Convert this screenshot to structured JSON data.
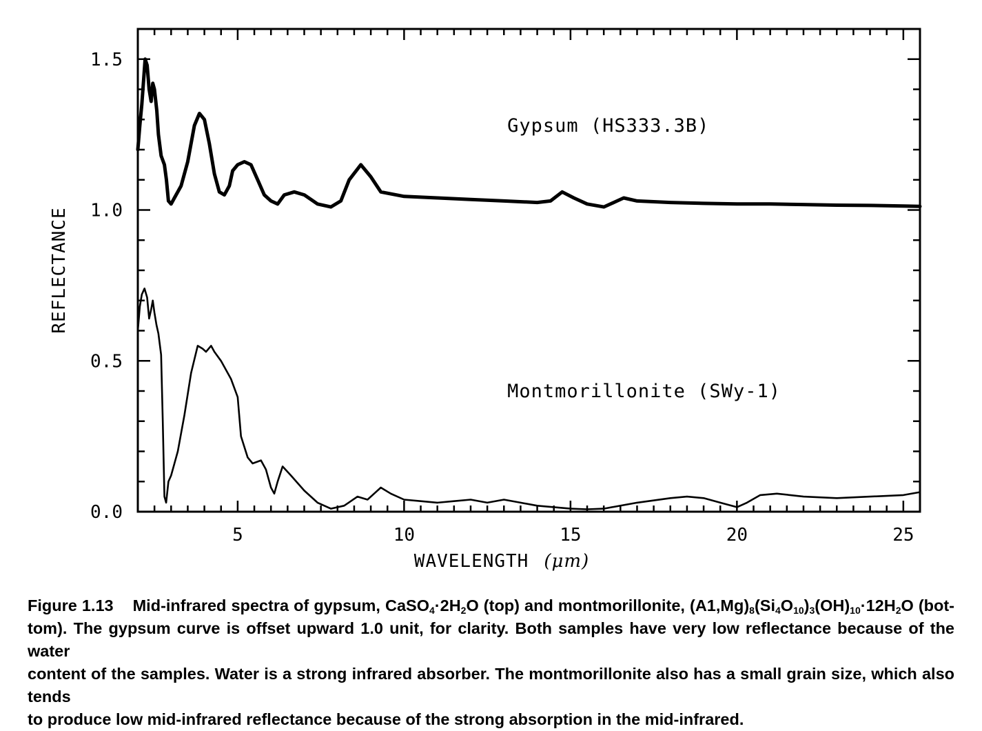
{
  "chart_data": {
    "type": "line",
    "xlabel": "WAVELENGTH",
    "xlabel_unit": "(μm)",
    "ylabel": "REFLECTANCE",
    "xlim": [
      2.0,
      25.5
    ],
    "ylim": [
      0.0,
      1.6
    ],
    "x_ticks": [
      {
        "value": 5,
        "label": "5"
      },
      {
        "value": 10,
        "label": "10"
      },
      {
        "value": 15,
        "label": "15"
      },
      {
        "value": 20,
        "label": "20"
      },
      {
        "value": 25,
        "label": "25"
      }
    ],
    "y_ticks": [
      {
        "value": 0.0,
        "label": "0.0"
      },
      {
        "value": 0.5,
        "label": "0.5"
      },
      {
        "value": 1.0,
        "label": "1.0"
      },
      {
        "value": 1.5,
        "label": "1.5"
      }
    ],
    "grid": false,
    "series": [
      {
        "name": "Gypsum (HS333.3B)",
        "label_anchor": [
          13.1,
          1.26
        ],
        "stroke_weight": "heavy",
        "points": [
          [
            2.0,
            1.2
          ],
          [
            2.06,
            1.28
          ],
          [
            2.12,
            1.35
          ],
          [
            2.18,
            1.44
          ],
          [
            2.22,
            1.5
          ],
          [
            2.28,
            1.48
          ],
          [
            2.34,
            1.4
          ],
          [
            2.4,
            1.36
          ],
          [
            2.45,
            1.42
          ],
          [
            2.5,
            1.4
          ],
          [
            2.57,
            1.33
          ],
          [
            2.62,
            1.25
          ],
          [
            2.7,
            1.18
          ],
          [
            2.8,
            1.15
          ],
          [
            2.86,
            1.1
          ],
          [
            2.92,
            1.03
          ],
          [
            3.0,
            1.02
          ],
          [
            3.1,
            1.04
          ],
          [
            3.3,
            1.08
          ],
          [
            3.5,
            1.16
          ],
          [
            3.7,
            1.28
          ],
          [
            3.85,
            1.32
          ],
          [
            4.0,
            1.3
          ],
          [
            4.15,
            1.22
          ],
          [
            4.3,
            1.12
          ],
          [
            4.45,
            1.06
          ],
          [
            4.6,
            1.05
          ],
          [
            4.75,
            1.08
          ],
          [
            4.85,
            1.13
          ],
          [
            5.0,
            1.15
          ],
          [
            5.2,
            1.16
          ],
          [
            5.4,
            1.15
          ],
          [
            5.6,
            1.1
          ],
          [
            5.8,
            1.05
          ],
          [
            6.0,
            1.03
          ],
          [
            6.2,
            1.02
          ],
          [
            6.4,
            1.05
          ],
          [
            6.7,
            1.06
          ],
          [
            7.0,
            1.05
          ],
          [
            7.4,
            1.02
          ],
          [
            7.8,
            1.01
          ],
          [
            8.1,
            1.03
          ],
          [
            8.35,
            1.1
          ],
          [
            8.7,
            1.15
          ],
          [
            9.0,
            1.11
          ],
          [
            9.3,
            1.06
          ],
          [
            10.0,
            1.045
          ],
          [
            11.0,
            1.04
          ],
          [
            12.0,
            1.035
          ],
          [
            13.0,
            1.03
          ],
          [
            14.0,
            1.025
          ],
          [
            14.4,
            1.03
          ],
          [
            14.75,
            1.06
          ],
          [
            15.1,
            1.04
          ],
          [
            15.5,
            1.02
          ],
          [
            16.0,
            1.01
          ],
          [
            16.4,
            1.03
          ],
          [
            16.6,
            1.04
          ],
          [
            17.0,
            1.03
          ],
          [
            18.0,
            1.025
          ],
          [
            19.0,
            1.022
          ],
          [
            20.0,
            1.02
          ],
          [
            21.0,
            1.02
          ],
          [
            22.0,
            1.018
          ],
          [
            23.0,
            1.016
          ],
          [
            24.0,
            1.015
          ],
          [
            25.0,
            1.013
          ],
          [
            25.5,
            1.012
          ]
        ]
      },
      {
        "name": "Montmorillonite (SWy-1)",
        "label_anchor": [
          13.1,
          0.38
        ],
        "stroke_weight": "light",
        "points": [
          [
            2.0,
            0.6
          ],
          [
            2.06,
            0.68
          ],
          [
            2.12,
            0.72
          ],
          [
            2.2,
            0.74
          ],
          [
            2.28,
            0.71
          ],
          [
            2.34,
            0.64
          ],
          [
            2.4,
            0.67
          ],
          [
            2.45,
            0.7
          ],
          [
            2.5,
            0.66
          ],
          [
            2.56,
            0.62
          ],
          [
            2.62,
            0.59
          ],
          [
            2.7,
            0.52
          ],
          [
            2.75,
            0.3
          ],
          [
            2.8,
            0.05
          ],
          [
            2.85,
            0.03
          ],
          [
            2.92,
            0.1
          ],
          [
            3.0,
            0.12
          ],
          [
            3.2,
            0.2
          ],
          [
            3.4,
            0.32
          ],
          [
            3.6,
            0.46
          ],
          [
            3.8,
            0.55
          ],
          [
            3.95,
            0.54
          ],
          [
            4.05,
            0.53
          ],
          [
            4.2,
            0.55
          ],
          [
            4.3,
            0.53
          ],
          [
            4.5,
            0.5
          ],
          [
            4.8,
            0.44
          ],
          [
            5.0,
            0.38
          ],
          [
            5.1,
            0.25
          ],
          [
            5.3,
            0.18
          ],
          [
            5.45,
            0.16
          ],
          [
            5.7,
            0.17
          ],
          [
            5.85,
            0.14
          ],
          [
            6.0,
            0.08
          ],
          [
            6.1,
            0.06
          ],
          [
            6.2,
            0.1
          ],
          [
            6.35,
            0.15
          ],
          [
            6.6,
            0.12
          ],
          [
            7.0,
            0.07
          ],
          [
            7.4,
            0.03
          ],
          [
            7.8,
            0.01
          ],
          [
            8.2,
            0.02
          ],
          [
            8.6,
            0.05
          ],
          [
            8.9,
            0.04
          ],
          [
            9.1,
            0.06
          ],
          [
            9.3,
            0.08
          ],
          [
            9.6,
            0.06
          ],
          [
            10.0,
            0.04
          ],
          [
            10.5,
            0.035
          ],
          [
            11.0,
            0.03
          ],
          [
            11.5,
            0.035
          ],
          [
            12.0,
            0.04
          ],
          [
            12.5,
            0.03
          ],
          [
            13.0,
            0.04
          ],
          [
            13.5,
            0.03
          ],
          [
            14.0,
            0.02
          ],
          [
            14.5,
            0.015
          ],
          [
            15.0,
            0.01
          ],
          [
            15.5,
            0.008
          ],
          [
            16.0,
            0.01
          ],
          [
            17.0,
            0.03
          ],
          [
            18.0,
            0.045
          ],
          [
            18.5,
            0.05
          ],
          [
            19.0,
            0.045
          ],
          [
            19.5,
            0.03
          ],
          [
            20.0,
            0.015
          ],
          [
            20.3,
            0.03
          ],
          [
            20.7,
            0.055
          ],
          [
            21.2,
            0.06
          ],
          [
            21.6,
            0.055
          ],
          [
            22.0,
            0.05
          ],
          [
            23.0,
            0.045
          ],
          [
            24.0,
            0.05
          ],
          [
            25.0,
            0.055
          ],
          [
            25.5,
            0.065
          ]
        ]
      }
    ]
  },
  "caption": {
    "figure_number": "Figure 1.13",
    "lines": [
      {
        "spans": [
          {
            "t": "Mid-infrared spectra of gypsum, CaSO"
          },
          {
            "sub": "4"
          },
          {
            "t": "·2H"
          },
          {
            "sub": "2"
          },
          {
            "t": "O (top) and montmorillonite, (A1,Mg)"
          },
          {
            "sub": "8"
          },
          {
            "t": "(Si"
          },
          {
            "sub": "4"
          },
          {
            "t": "O"
          },
          {
            "sub": "10"
          },
          {
            "t": ")"
          },
          {
            "sub": "3"
          },
          {
            "t": "(OH)"
          },
          {
            "sub": "10"
          },
          {
            "t": "·12H"
          },
          {
            "sub": "2"
          },
          {
            "t": "O (bot-"
          }
        ]
      },
      {
        "spans": [
          {
            "t": "tom). The gypsum curve is offset upward 1.0 unit, for clarity. Both samples have very low reflectance because of the water"
          }
        ]
      },
      {
        "spans": [
          {
            "t": "content of the samples. Water is a strong infrared absorber. The montmorillonite also has a small grain size, which also tends"
          }
        ]
      },
      {
        "spans": [
          {
            "t": "to produce low mid-infrared reflectance because of the strong absorption in the mid-infrared."
          }
        ]
      }
    ]
  }
}
